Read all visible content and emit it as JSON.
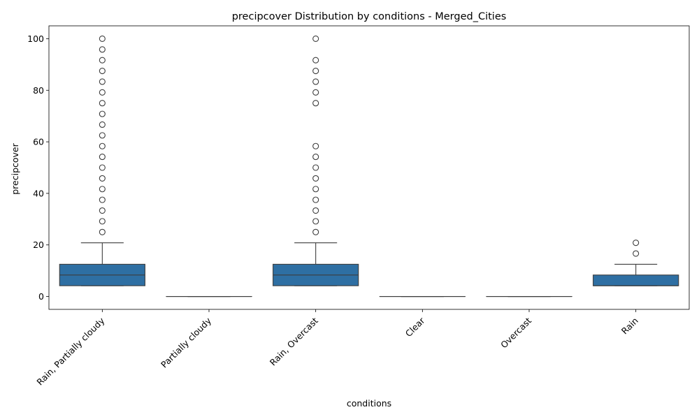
{
  "chart_data": {
    "type": "box",
    "title": "precipcover Distribution by conditions - Merged_Cities",
    "xlabel": "conditions",
    "ylabel": "precipcover",
    "ylim": [
      -5,
      105
    ],
    "yticks": [
      0,
      20,
      40,
      60,
      80,
      100
    ],
    "grid": false,
    "box_color": "#2e6fa3",
    "categories": [
      "Rain, Partially cloudy",
      "Partially cloudy",
      "Rain, Overcast",
      "Clear",
      "Overcast",
      "Rain"
    ],
    "boxes": [
      {
        "category": "Rain, Partially cloudy",
        "whisker_low": 4.17,
        "q1": 4.17,
        "median": 8.33,
        "q3": 12.5,
        "whisker_high": 20.83,
        "outliers": [
          25,
          29.17,
          33.33,
          37.5,
          41.67,
          45.83,
          50,
          54.17,
          58.33,
          62.5,
          66.67,
          70.83,
          75,
          79.17,
          83.33,
          87.5,
          91.67,
          95.83,
          100
        ]
      },
      {
        "category": "Partially cloudy",
        "whisker_low": 0,
        "q1": 0,
        "median": 0,
        "q3": 0,
        "whisker_high": 0,
        "outliers": []
      },
      {
        "category": "Rain, Overcast",
        "whisker_low": 4.17,
        "q1": 4.17,
        "median": 8.33,
        "q3": 12.5,
        "whisker_high": 20.83,
        "outliers": [
          25,
          29.17,
          33.33,
          37.5,
          41.67,
          45.83,
          50,
          54.17,
          58.33,
          75,
          79.17,
          83.33,
          87.5,
          91.67,
          100
        ]
      },
      {
        "category": "Clear",
        "whisker_low": 0,
        "q1": 0,
        "median": 0,
        "q3": 0,
        "whisker_high": 0,
        "outliers": []
      },
      {
        "category": "Overcast",
        "whisker_low": 0,
        "q1": 0,
        "median": 0,
        "q3": 0,
        "whisker_high": 0,
        "outliers": []
      },
      {
        "category": "Rain",
        "whisker_low": 4.17,
        "q1": 4.17,
        "median": 4.17,
        "q3": 8.33,
        "whisker_high": 12.5,
        "outliers": [
          16.67,
          20.83
        ]
      }
    ]
  }
}
